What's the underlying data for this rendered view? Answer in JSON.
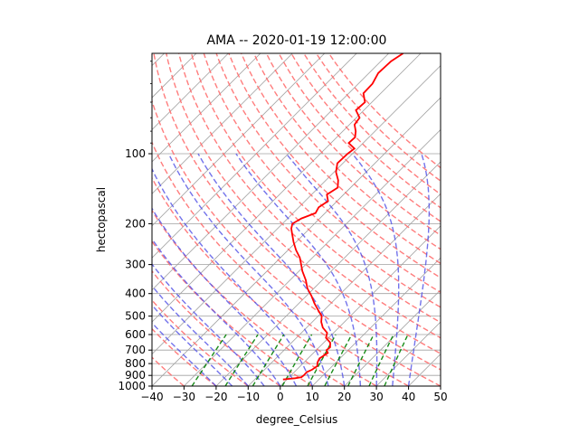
{
  "chart_data": {
    "type": "line",
    "title": "AMA -- 2020-01-19 12:00:00",
    "xlabel": "degree_Celsius",
    "ylabel": "hectopascal",
    "xlim": [
      -40,
      50
    ],
    "ylim_hpa": [
      1000,
      37
    ],
    "y_scale": "log",
    "grid": true,
    "x_ticks": [
      -40,
      -30,
      -20,
      -10,
      0,
      10,
      20,
      30,
      40,
      50
    ],
    "y_ticks": [
      1000,
      900,
      800,
      700,
      600,
      500,
      400,
      300,
      200,
      100
    ],
    "skew_t": true,
    "series": [
      {
        "type": "temperature_profile",
        "color": "#ff0000",
        "pressure": [
          937,
          930,
          925,
          915,
          900,
          870,
          850,
          820,
          790,
          760,
          720,
          700,
          680,
          650,
          620,
          590,
          560,
          530,
          500,
          470,
          440,
          410,
          380,
          350,
          320,
          300,
          280,
          260,
          240,
          220,
          210,
          200,
          190,
          180,
          170,
          160,
          150,
          140,
          130,
          120,
          110,
          100,
          95,
          90,
          85,
          80,
          75,
          70,
          65,
          60,
          55,
          50,
          45,
          40,
          37
        ],
        "temperature": [
          -1.2,
          0.8,
          2.2,
          3.8,
          4.0,
          3.9,
          4.8,
          5.3,
          4.2,
          3.6,
          4.5,
          3.2,
          3.4,
          2.0,
          -0.8,
          -2.0,
          -5.0,
          -7.2,
          -8.9,
          -12.0,
          -15.2,
          -18.3,
          -22.0,
          -25.1,
          -29.0,
          -31.4,
          -34.0,
          -37.5,
          -40.8,
          -44.0,
          -45.7,
          -46.9,
          -45.7,
          -43.0,
          -43.8,
          -42.8,
          -45.2,
          -44.0,
          -46.2,
          -49.4,
          -51.7,
          -51.5,
          -51.0,
          -54.5,
          -54.3,
          -56.0,
          -58.4,
          -59.0,
          -62.5,
          -62.2,
          -65.4,
          -65.6,
          -67.1,
          -66.8,
          -65.5
        ]
      }
    ],
    "reference_lines": {
      "dry_adiabats_color": "#ff6666",
      "moist_adiabats_color": "#5050e6",
      "mixing_ratio_color": "#008000",
      "isotherms_color": "#a0a0a0"
    }
  }
}
